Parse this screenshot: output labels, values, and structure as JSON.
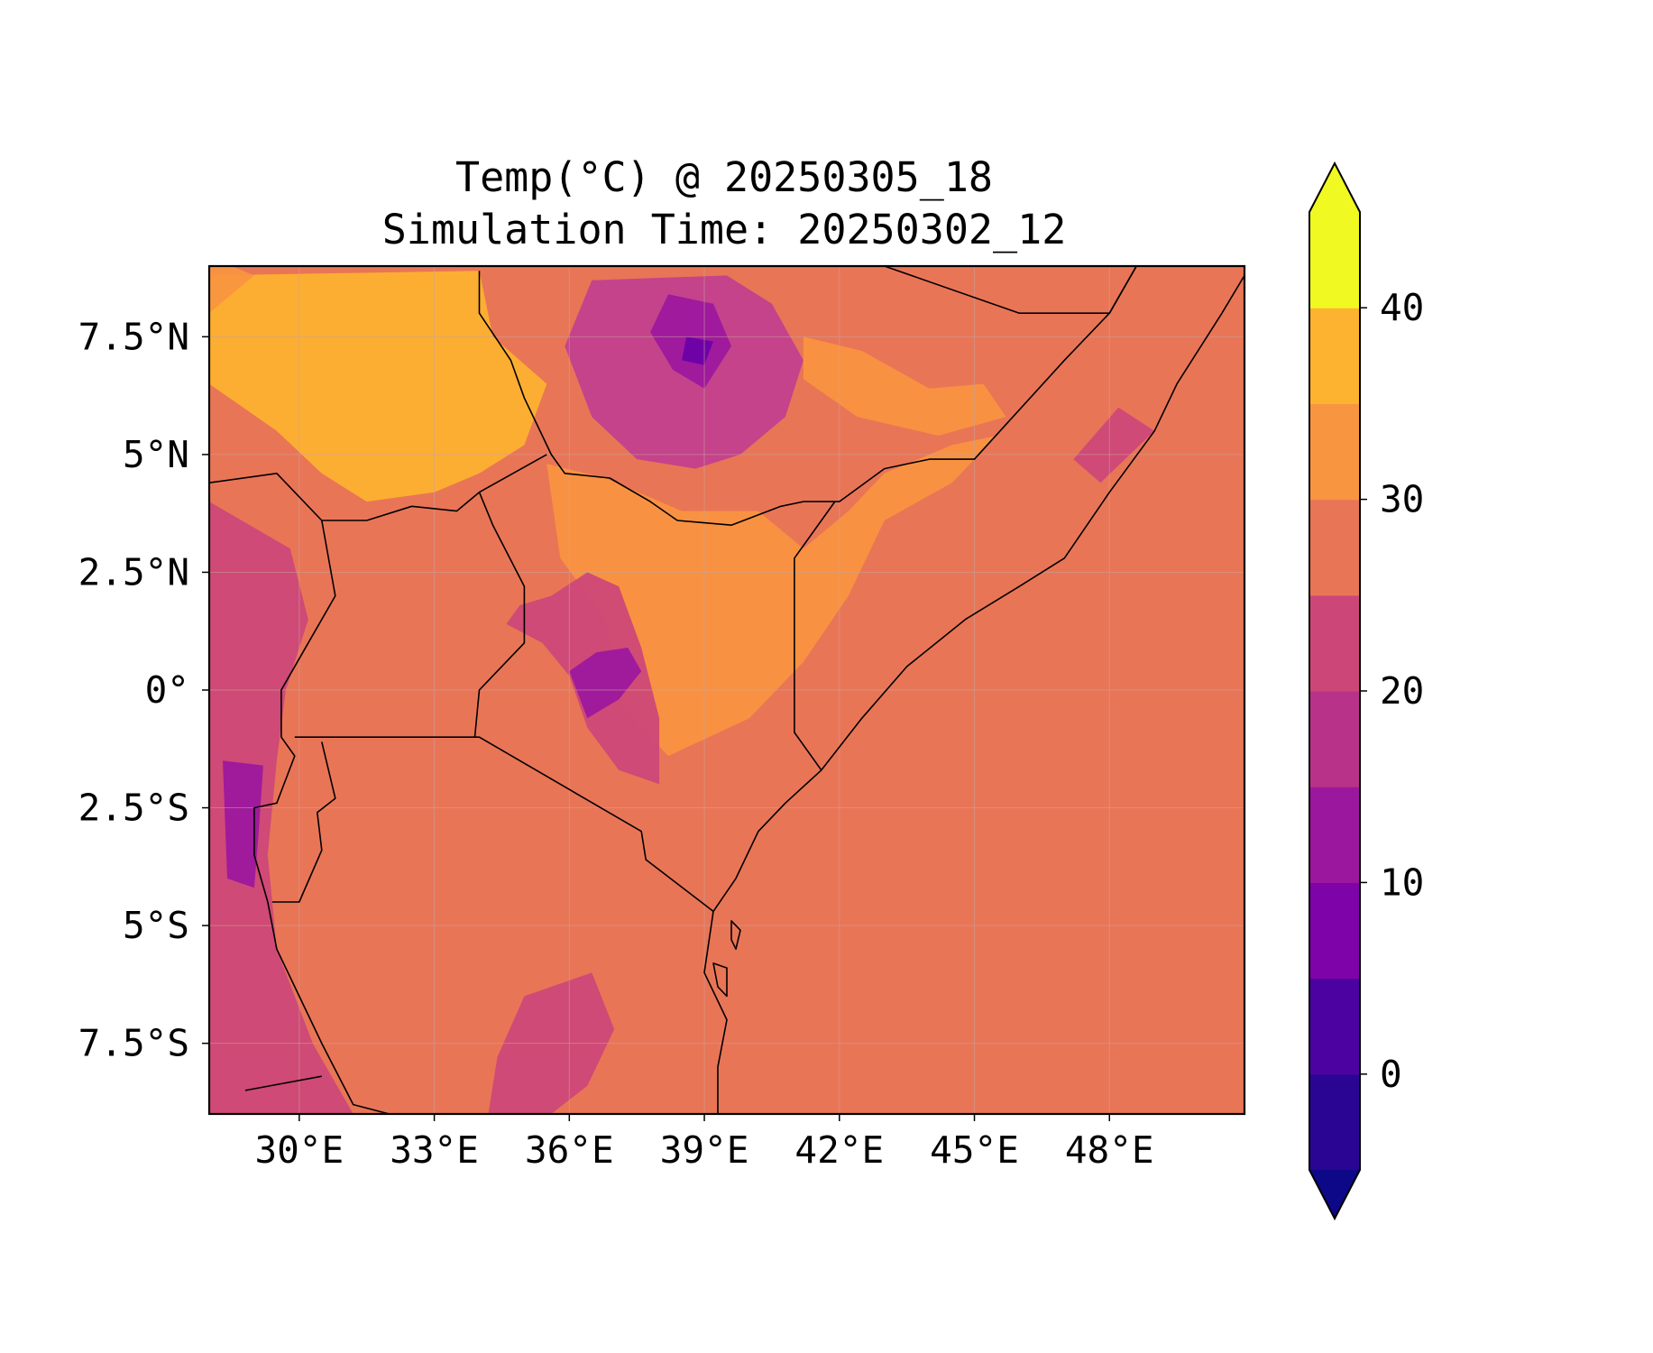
{
  "title": {
    "line1": "Temp(°C) @ 20250305_18",
    "line2": "Simulation Time: 20250302_12"
  },
  "map": {
    "extent": {
      "lon": [
        28,
        51
      ],
      "lat": [
        -9,
        9
      ]
    },
    "lon_ticks": [
      {
        "value": 30,
        "label": "30°E"
      },
      {
        "value": 33,
        "label": "33°E"
      },
      {
        "value": 36,
        "label": "36°E"
      },
      {
        "value": 39,
        "label": "39°E"
      },
      {
        "value": 42,
        "label": "42°E"
      },
      {
        "value": 45,
        "label": "45°E"
      },
      {
        "value": 48,
        "label": "48°E"
      }
    ],
    "lat_ticks": [
      {
        "value": 7.5,
        "label": "7.5°N"
      },
      {
        "value": 5,
        "label": "5°N"
      },
      {
        "value": 2.5,
        "label": "2.5°N"
      },
      {
        "value": 0,
        "label": "0°"
      },
      {
        "value": -2.5,
        "label": "2.5°S"
      },
      {
        "value": -5,
        "label": "5°S"
      },
      {
        "value": -7.5,
        "label": "7.5°S"
      }
    ],
    "background_color": "#e97557",
    "fields": [
      {
        "name": "ethiopian-highlands-cool",
        "color": "#c03f8f",
        "ring": [
          [
            36.5,
            8.7
          ],
          [
            39.5,
            8.8
          ],
          [
            40.5,
            8.2
          ],
          [
            41.2,
            7.0
          ],
          [
            40.8,
            5.8
          ],
          [
            39.8,
            5.0
          ],
          [
            38.8,
            4.7
          ],
          [
            37.5,
            4.9
          ],
          [
            36.5,
            5.8
          ],
          [
            35.9,
            7.3
          ]
        ]
      },
      {
        "name": "ethiopian-highlands-cold",
        "color": "#9b179e",
        "ring": [
          [
            38.2,
            8.4
          ],
          [
            39.2,
            8.2
          ],
          [
            39.6,
            7.3
          ],
          [
            39.0,
            6.4
          ],
          [
            38.3,
            6.8
          ],
          [
            37.8,
            7.6
          ]
        ]
      },
      {
        "name": "ethiopian-highlands-coldest",
        "color": "#6a00a8",
        "ring": [
          [
            38.6,
            7.5
          ],
          [
            39.2,
            7.4
          ],
          [
            39.0,
            6.9
          ],
          [
            38.5,
            7.0
          ]
        ]
      },
      {
        "name": "south-sudan-warm",
        "color": "#fdb32f",
        "ring": [
          [
            28.0,
            8.8
          ],
          [
            34.0,
            8.9
          ],
          [
            34.3,
            7.5
          ],
          [
            35.5,
            6.5
          ],
          [
            35.0,
            5.2
          ],
          [
            34.0,
            4.6
          ],
          [
            33.0,
            4.2
          ],
          [
            31.5,
            4.0
          ],
          [
            30.5,
            4.6
          ],
          [
            29.5,
            5.5
          ],
          [
            28.0,
            6.5
          ]
        ]
      },
      {
        "name": "west-warm",
        "color": "#f89540",
        "ring": [
          [
            28.0,
            8.0
          ],
          [
            29.0,
            8.8
          ],
          [
            28.5,
            9.0
          ],
          [
            28.0,
            9.0
          ]
        ]
      },
      {
        "name": "northern-kenya-hot",
        "color": "#f89540",
        "ring": [
          [
            35.5,
            4.8
          ],
          [
            36.8,
            4.5
          ],
          [
            38.5,
            3.8
          ],
          [
            40.2,
            3.8
          ],
          [
            41.2,
            3.0
          ],
          [
            42.2,
            3.8
          ],
          [
            43.0,
            4.6
          ],
          [
            44.5,
            5.2
          ],
          [
            45.5,
            5.4
          ],
          [
            44.5,
            4.4
          ],
          [
            43.0,
            3.6
          ],
          [
            42.2,
            2.0
          ],
          [
            41.2,
            0.6
          ],
          [
            40.0,
            -0.6
          ],
          [
            38.2,
            -1.4
          ],
          [
            37.2,
            -0.4
          ],
          [
            36.8,
            1.5
          ],
          [
            35.8,
            2.8
          ]
        ]
      },
      {
        "name": "uganda-kenya-highlands",
        "color": "#cc4778",
        "ring": [
          [
            34.6,
            1.4
          ],
          [
            35.4,
            1.0
          ],
          [
            36.0,
            0.3
          ],
          [
            36.4,
            -0.8
          ],
          [
            37.1,
            -1.7
          ],
          [
            38.0,
            -2.0
          ],
          [
            38.0,
            -0.6
          ],
          [
            37.6,
            0.9
          ],
          [
            37.1,
            2.2
          ],
          [
            36.4,
            2.5
          ],
          [
            35.6,
            2.0
          ],
          [
            34.9,
            1.8
          ]
        ]
      },
      {
        "name": "kenya-highlands-cold",
        "color": "#9b179e",
        "ring": [
          [
            36.0,
            0.4
          ],
          [
            36.4,
            -0.6
          ],
          [
            37.1,
            -0.2
          ],
          [
            37.6,
            0.4
          ],
          [
            37.3,
            0.9
          ],
          [
            36.6,
            0.8
          ]
        ]
      },
      {
        "name": "albertine-rift",
        "color": "#cc4778",
        "ring": [
          [
            28.0,
            4.0
          ],
          [
            29.8,
            3.0
          ],
          [
            30.2,
            1.5
          ],
          [
            29.7,
            0.0
          ],
          [
            29.5,
            -1.5
          ],
          [
            29.3,
            -3.5
          ],
          [
            29.5,
            -5.5
          ],
          [
            30.3,
            -7.5
          ],
          [
            31.2,
            -9.0
          ],
          [
            28.0,
            -9.0
          ]
        ]
      },
      {
        "name": "rwanda-burundi-cold",
        "color": "#9b179e",
        "ring": [
          [
            28.3,
            -1.5
          ],
          [
            29.2,
            -1.6
          ],
          [
            29.1,
            -3.0
          ],
          [
            29.0,
            -4.2
          ],
          [
            28.4,
            -4.0
          ]
        ]
      },
      {
        "name": "tanzania-highlands",
        "color": "#cc4778",
        "ring": [
          [
            35.0,
            -6.5
          ],
          [
            36.5,
            -6.0
          ],
          [
            37.0,
            -7.2
          ],
          [
            36.4,
            -8.4
          ],
          [
            35.6,
            -9.0
          ],
          [
            34.2,
            -9.0
          ],
          [
            34.4,
            -7.8
          ]
        ]
      },
      {
        "name": "somalia-coast-cool",
        "color": "#cc4778",
        "ring": [
          [
            47.8,
            4.4
          ],
          [
            49.0,
            5.5
          ],
          [
            48.2,
            6.0
          ],
          [
            47.2,
            4.9
          ]
        ]
      },
      {
        "name": "ne-ethiopia-warm",
        "color": "#f89540",
        "ring": [
          [
            41.2,
            7.5
          ],
          [
            42.5,
            7.2
          ],
          [
            44.0,
            6.4
          ],
          [
            45.2,
            6.5
          ],
          [
            45.7,
            5.8
          ],
          [
            44.2,
            5.4
          ],
          [
            42.4,
            5.8
          ],
          [
            41.2,
            6.6
          ]
        ]
      }
    ],
    "boundaries": [
      {
        "name": "ssd-eth-kenya-border",
        "points": [
          [
            34.0,
            8.9
          ],
          [
            34.0,
            8.0
          ],
          [
            34.7,
            7.0
          ],
          [
            35.0,
            6.2
          ],
          [
            35.6,
            5.0
          ],
          [
            35.9,
            4.6
          ],
          [
            36.9,
            4.5
          ],
          [
            37.8,
            4.0
          ],
          [
            38.4,
            3.6
          ],
          [
            39.6,
            3.5
          ],
          [
            40.7,
            3.9
          ],
          [
            41.2,
            4.0
          ],
          [
            42.0,
            4.0
          ],
          [
            43.0,
            4.7
          ],
          [
            44.0,
            4.9
          ],
          [
            45.0,
            4.9
          ],
          [
            47.0,
            7.0
          ],
          [
            48.0,
            8.0
          ],
          [
            48.6,
            9.0
          ]
        ]
      },
      {
        "name": "ssd-uganda-border",
        "points": [
          [
            28.0,
            4.4
          ],
          [
            29.5,
            4.6
          ],
          [
            30.5,
            3.6
          ],
          [
            31.5,
            3.6
          ],
          [
            32.5,
            3.9
          ],
          [
            33.5,
            3.8
          ],
          [
            34.0,
            4.2
          ],
          [
            35.5,
            5.0
          ]
        ]
      },
      {
        "name": "uganda-kenya-border",
        "points": [
          [
            34.0,
            4.2
          ],
          [
            34.3,
            3.5
          ],
          [
            35.0,
            2.2
          ],
          [
            35.0,
            1.0
          ],
          [
            34.6,
            0.6
          ],
          [
            34.0,
            0.0
          ],
          [
            33.9,
            -1.0
          ]
        ]
      },
      {
        "name": "drc-uganda-border",
        "points": [
          [
            30.5,
            3.6
          ],
          [
            30.8,
            2.0
          ],
          [
            30.2,
            1.0
          ],
          [
            29.6,
            0.0
          ],
          [
            29.6,
            -1.0
          ],
          [
            29.9,
            -1.4
          ],
          [
            29.5,
            -2.4
          ],
          [
            29.0,
            -2.5
          ],
          [
            29.0,
            -3.5
          ],
          [
            29.3,
            -4.5
          ],
          [
            29.5,
            -5.5
          ],
          [
            30.0,
            -6.5
          ],
          [
            30.5,
            -7.5
          ],
          [
            31.2,
            -8.8
          ],
          [
            32.0,
            -9.0
          ]
        ]
      },
      {
        "name": "lake-victoria-south",
        "points": [
          [
            29.9,
            -1.0
          ],
          [
            34.0,
            -1.0
          ],
          [
            37.6,
            -3.0
          ],
          [
            37.7,
            -3.6
          ],
          [
            39.2,
            -4.7
          ]
        ]
      },
      {
        "name": "rwanda-burundi-border",
        "points": [
          [
            30.5,
            -1.1
          ],
          [
            30.8,
            -2.3
          ],
          [
            30.4,
            -2.6
          ],
          [
            30.5,
            -3.4
          ],
          [
            30.0,
            -4.5
          ],
          [
            29.4,
            -4.5
          ]
        ]
      },
      {
        "name": "kenya-somalia-border",
        "points": [
          [
            41.9,
            4.0
          ],
          [
            41.0,
            2.8
          ],
          [
            41.0,
            -0.9
          ],
          [
            41.6,
            -1.7
          ]
        ]
      },
      {
        "name": "somalia-ethiopia-north",
        "points": [
          [
            43.0,
            9.0
          ],
          [
            46.0,
            8.0
          ],
          [
            48.0,
            8.0
          ],
          [
            48.6,
            9.0
          ]
        ]
      },
      {
        "name": "bottom-left-border",
        "points": [
          [
            28.8,
            -8.5
          ],
          [
            30.5,
            -8.2
          ]
        ]
      }
    ],
    "coastlines": [
      {
        "name": "east-african-coast",
        "points": [
          [
            39.3,
            -9.0
          ],
          [
            39.3,
            -8.0
          ],
          [
            39.5,
            -7.0
          ],
          [
            39.0,
            -6.0
          ],
          [
            39.2,
            -4.7
          ],
          [
            39.7,
            -4.0
          ],
          [
            40.2,
            -3.0
          ],
          [
            40.8,
            -2.4
          ],
          [
            41.6,
            -1.7
          ],
          [
            42.5,
            -0.6
          ],
          [
            43.5,
            0.5
          ],
          [
            44.8,
            1.5
          ],
          [
            46.0,
            2.2
          ],
          [
            47.0,
            2.8
          ],
          [
            48.0,
            4.2
          ],
          [
            49.0,
            5.5
          ],
          [
            49.5,
            6.5
          ],
          [
            50.5,
            8.0
          ],
          [
            51.0,
            8.8
          ]
        ]
      },
      {
        "name": "zanzibar",
        "points": [
          [
            39.2,
            -5.8
          ],
          [
            39.5,
            -5.9
          ],
          [
            39.5,
            -6.5
          ],
          [
            39.3,
            -6.3
          ]
        ]
      },
      {
        "name": "pemba",
        "points": [
          [
            39.6,
            -4.9
          ],
          [
            39.8,
            -5.1
          ],
          [
            39.7,
            -5.5
          ],
          [
            39.6,
            -5.3
          ]
        ]
      }
    ]
  },
  "colorbar": {
    "levels": [
      -5,
      0,
      5,
      10,
      15,
      20,
      25,
      30,
      35,
      40,
      45
    ],
    "colors": [
      "#2a0593",
      "#4c02a1",
      "#7e03a8",
      "#9b179e",
      "#b83289",
      "#cc4778",
      "#e97557",
      "#f89540",
      "#fdb32f",
      "#f0f921"
    ],
    "under_color": "#0d0887",
    "over_color": "#f0f921",
    "ticks": [
      {
        "value": 0,
        "label": "0"
      },
      {
        "value": 10,
        "label": "10"
      },
      {
        "value": 20,
        "label": "20"
      },
      {
        "value": 30,
        "label": "30"
      },
      {
        "value": 40,
        "label": "40"
      }
    ]
  }
}
